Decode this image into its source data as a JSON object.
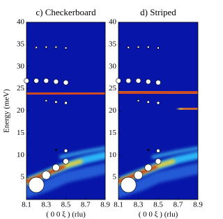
{
  "chart_data": [
    {
      "type": "scatter",
      "title": "c) Checkerboard",
      "xlabel": "( 0 0 ξ ) (rlu)",
      "ylabel": "Energy (meV)",
      "xlim": [
        8.1,
        8.9
      ],
      "xticks": [
        8.1,
        8.3,
        8.5,
        8.7,
        8.9
      ],
      "ylim": [
        0,
        40
      ],
      "yticks": [
        5,
        10,
        15,
        20,
        25,
        30,
        35,
        40
      ],
      "x": [
        8.1,
        8.2,
        8.3,
        8.4,
        8.5,
        8.2,
        8.3,
        8.4,
        8.5,
        8.3,
        8.4,
        8.5,
        8.4,
        8.5,
        8.2,
        8.3,
        8.4,
        8.5
      ],
      "y": [
        26.8,
        26.8,
        26.8,
        26.6,
        26.4,
        34.3,
        34.4,
        34.4,
        34.2,
        22.3,
        22.0,
        21.8,
        11.2,
        11.0,
        3.3,
        5.5,
        7.2,
        8.6
      ],
      "sizes": [
        3.5,
        3.5,
        3.5,
        3.5,
        3.5,
        1.5,
        1.5,
        1.5,
        1.5,
        1.5,
        1.8,
        2,
        1.2,
        2.5,
        11,
        6,
        5,
        4
      ],
      "colors": [
        "#fff",
        "#fff",
        "#fff",
        "#fff",
        "#fff",
        "#fff",
        "#fff",
        "#fff",
        "#fff",
        "#fff",
        "#fff",
        "#fff",
        "#000",
        "#fff",
        "#fff",
        "#fff",
        "#fff",
        "#fff"
      ]
    },
    {
      "type": "scatter",
      "title": "d) Striped",
      "xlabel": "( 0 0 ξ ) (rlu)",
      "xlim": [
        8.1,
        8.9
      ],
      "xticks": [
        8.1,
        8.3,
        8.5,
        8.7,
        8.9
      ],
      "ylim": [
        0,
        40
      ],
      "yticks": [
        5,
        10,
        15,
        20,
        25,
        30,
        35,
        40
      ],
      "x": [
        8.1,
        8.2,
        8.3,
        8.4,
        8.5,
        8.2,
        8.3,
        8.4,
        8.5,
        8.3,
        8.4,
        8.5,
        8.4,
        8.5,
        8.2,
        8.3,
        8.4,
        8.5
      ],
      "y": [
        26.8,
        26.8,
        26.8,
        26.6,
        26.4,
        34.3,
        34.4,
        34.4,
        34.2,
        22.3,
        22.0,
        21.8,
        11.2,
        11.0,
        3.3,
        5.5,
        7.2,
        8.6
      ],
      "sizes": [
        3.5,
        3.5,
        3.5,
        3.5,
        3.5,
        1.5,
        1.5,
        1.5,
        1.5,
        1.5,
        1.8,
        2,
        1.2,
        2.5,
        11,
        6,
        5,
        4
      ],
      "colors": [
        "#fff",
        "#fff",
        "#fff",
        "#fff",
        "#fff",
        "#fff",
        "#fff",
        "#fff",
        "#fff",
        "#fff",
        "#fff",
        "#fff",
        "#000",
        "#fff",
        "#fff",
        "#fff",
        "#fff",
        "#fff"
      ]
    }
  ]
}
